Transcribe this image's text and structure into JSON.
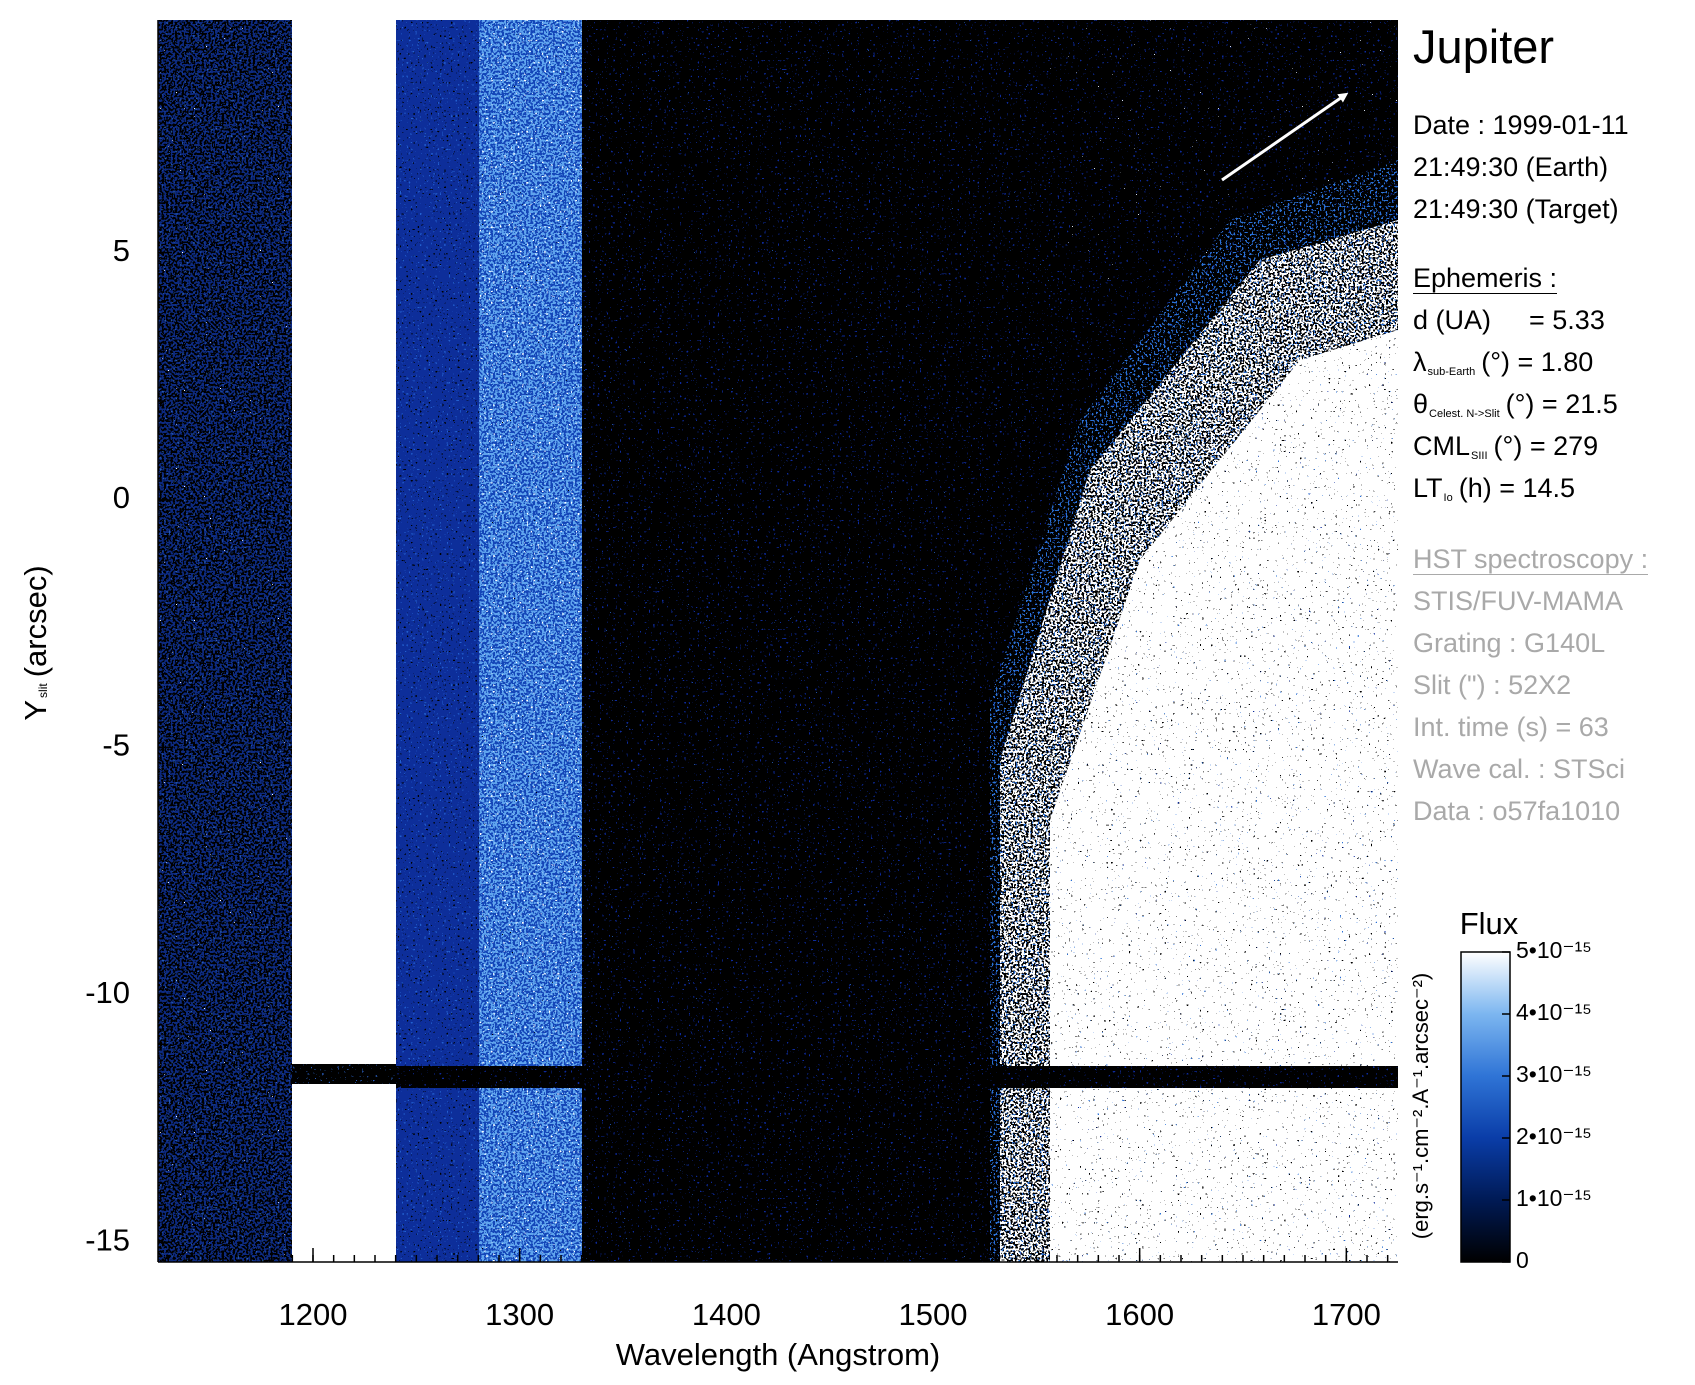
{
  "chart_data": {
    "type": "heatmap",
    "title": "Jupiter",
    "x_label": "Wavelength (Angstrom)",
    "y_label": {
      "main": "Y",
      "sub": "slit",
      "rest": "(arcsec)"
    },
    "xlim": [
      1125,
      1725
    ],
    "xticks": [
      1200,
      1300,
      1400,
      1500,
      1600,
      1700
    ],
    "ylim": [
      -15.4,
      9.7
    ],
    "yticks": [
      -15,
      -10,
      -5,
      0,
      5
    ],
    "colorbar": {
      "title": "Flux",
      "label": "(erg.s⁻¹.cm⁻².A⁻¹.arcsec⁻²)",
      "lim": [
        0,
        5e-15
      ],
      "ticks": [
        0,
        {
          "value": 1e-15,
          "label": "1•10⁻¹⁵"
        },
        {
          "value": 2e-15,
          "label": "2•10⁻¹⁵"
        },
        {
          "value": 3e-15,
          "label": "3•10⁻¹⁵"
        },
        {
          "value": 4e-15,
          "label": "4•10⁻¹⁵"
        },
        {
          "value": 5e-15,
          "label": "5•10⁻¹⁵"
        }
      ],
      "colors": [
        "#000000",
        "#001a55",
        "#0a3da8",
        "#2f74d6",
        "#7cb6f0",
        "#ffffff"
      ]
    },
    "info": {
      "date": [
        "Date : 1999-01-11",
        "21:49:30 (Earth)",
        "21:49:30 (Target)"
      ],
      "ephemeris": {
        "heading": "Ephemeris :",
        "rows": [
          {
            "name": "d (UA)",
            "value": "= 5.33"
          },
          {
            "name": "λ",
            "sub": "sub-Earth",
            "value": "(°) = 1.80"
          },
          {
            "name": "θ",
            "sub": "Celest. N->Slit",
            "value": "(°) = 21.5"
          },
          {
            "name": "CML",
            "sub": "SIII",
            "value": "(°) = 279"
          },
          {
            "name": "LT",
            "sub": "Io",
            "value": "(h) = 14.5"
          }
        ]
      },
      "observation": {
        "heading": "HST spectroscopy :",
        "rows": [
          "STIS/FUV-MAMA",
          "Grating : G140L",
          "Slit (\") : 52X2",
          "Int. time (s) = 63",
          "Wave cal. : STSci",
          "Data : o57fa1010"
        ]
      }
    }
  }
}
